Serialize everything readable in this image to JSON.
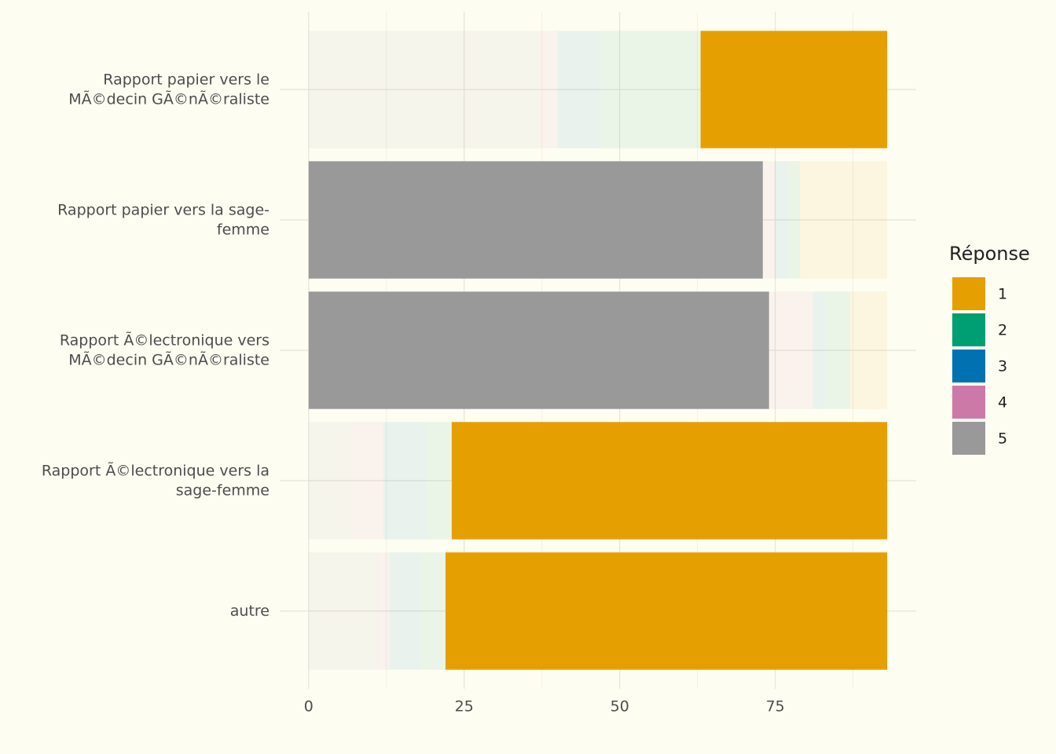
{
  "chart_data": {
    "type": "stacked-barh",
    "categories": [
      "Rapport papier vers le\nMÃ©decin GÃ©nÃ©raliste",
      "Rapport papier vers la sage-\nfemme",
      "Rapport Ã©lectronique vers\nMÃ©decin GÃ©nÃ©raliste",
      "Rapport Ã©lectronique vers la\nsage-femme",
      "autre"
    ],
    "series": [
      {
        "name": "5",
        "color": "#999999",
        "values": [
          37,
          73,
          74,
          7,
          11
        ]
      },
      {
        "name": "4",
        "color": "#CC79A7",
        "values": [
          3,
          2,
          7,
          5,
          2
        ]
      },
      {
        "name": "3",
        "color": "#0072B2",
        "values": [
          7,
          2,
          2,
          7,
          5
        ]
      },
      {
        "name": "2",
        "color": "#009E73",
        "values": [
          16,
          2,
          4,
          4,
          4
        ]
      },
      {
        "name": "1",
        "color": "#E69F00",
        "values": [
          30,
          14,
          6,
          70,
          71
        ]
      }
    ],
    "highlighted": [
      "1",
      "5",
      "5",
      "1",
      "1"
    ],
    "legend_title": "Réponse",
    "legend_order": [
      "1",
      "2",
      "3",
      "4",
      "5"
    ],
    "xlim": [
      -4.65,
      97.65
    ],
    "xticks": [
      0,
      25,
      50,
      75
    ],
    "minor_xticks": [
      12.5,
      37.5,
      62.5,
      87.5
    ],
    "grid": true,
    "legend": "right"
  }
}
